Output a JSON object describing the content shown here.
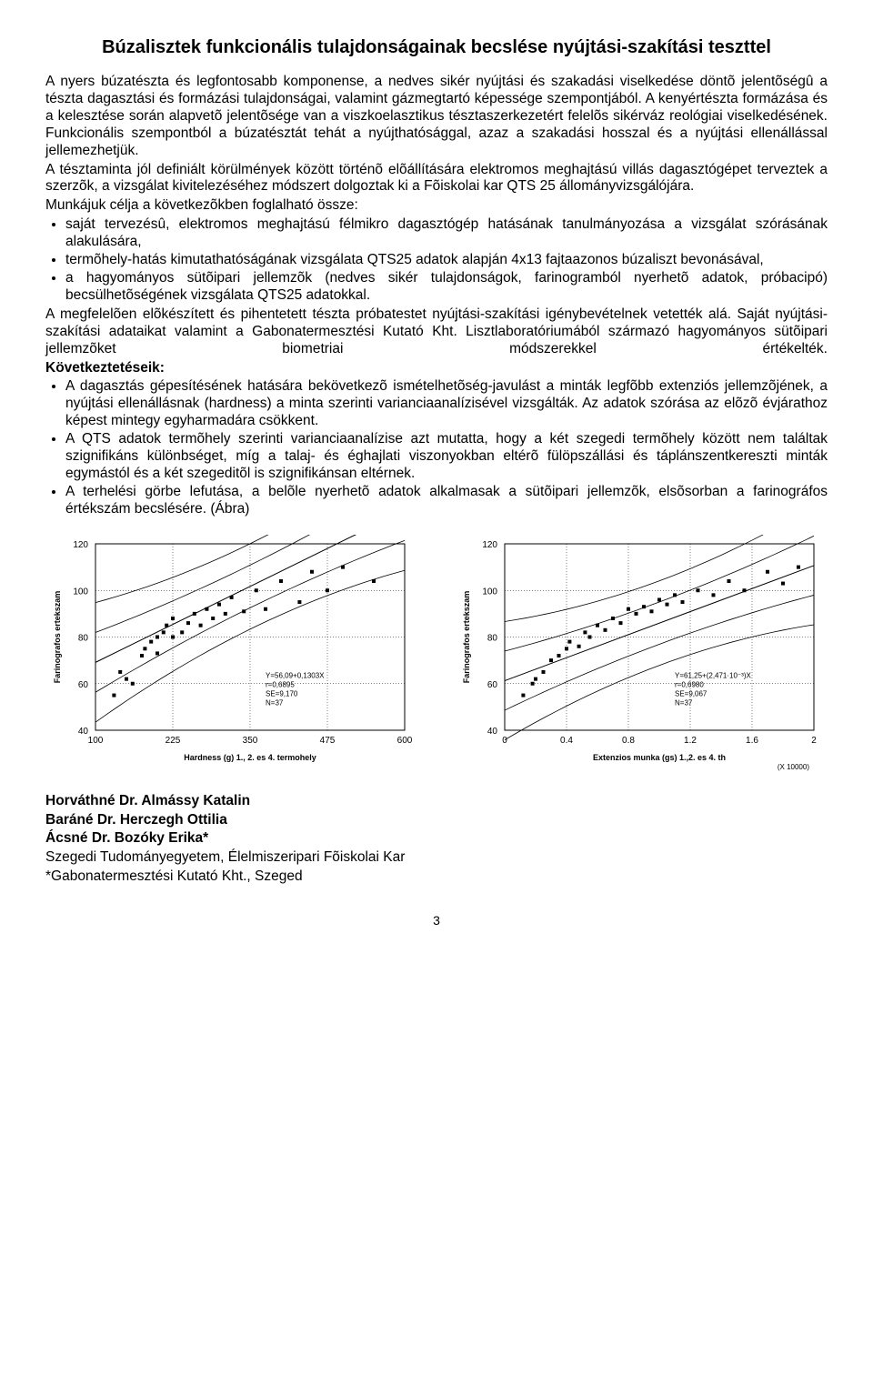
{
  "title": "Búzalisztek funkcionális tulajdonságainak becslése nyújtási-szakítási teszttel",
  "para1": "A nyers búzatészta és legfontosabb komponense, a nedves sikér nyújtási és szakadási viselkedése döntõ jelentõségû a tészta dagasztási és formázási tulajdonságai, valamint gázmegtartó képessége szempontjából. A kenyértészta formázása és a kelesztése során alapvetõ jelentõsége van a viszkoelasztikus tésztaszerkezetért felelõs sikérváz reológiai viselkedésének. Funkcionális szempontból a búzatésztát tehát a nyújthatósággal, azaz a szakadási hosszal és a nyújtási ellenállással jellemezhetjük.",
  "para2": "A tésztaminta jól definiált körülmények között történõ elõállítására elektromos meghajtású villás dagasztógépet terveztek a szerzõk, a vizsgálat kivitelezéséhez módszert dolgoztak ki a Fõiskolai kar QTS 25 állományvizsgálójára.",
  "para3": "Munkájuk célja a következõkben foglalható össze:",
  "bullets1": [
    "saját tervezésû, elektromos meghajtású félmikro dagasztógép hatásának tanulmányozása a vizsgálat szórásának alakulására,",
    "termõhely-hatás kimutathatóságának vizsgálata QTS25 adatok alapján 4x13 fajtaazonos búzaliszt bevonásával,",
    "a hagyományos sütõipari jellemzõk (nedves sikér tulajdonságok, farinogramból nyerhetõ adatok, próbacipó) becsülhetõségének vizsgálata QTS25 adatokkal."
  ],
  "para4": "A megfelelõen elõkészített és pihentetett tészta próbatestet nyújtási-szakítási igénybevételnek vetették alá. Saját nyújtási-szakítási adataikat valamint a Gabonatermesztési Kutató Kht. Lisztlaboratóriumából származó hagyományos sütõipari jellemzõket biometriai módszerekkel értékelték.",
  "conclusions_label": "Következtetéseik:",
  "bullets2": [
    "A dagasztás gépesítésének hatására bekövetkezõ ismételhetõség-javulást a minták legfõbb extenziós jellemzõjének, a nyújtási ellenállásnak (hardness) a minta szerinti varianciaanalízisével vizsgálták. Az adatok szórása az elõzõ évjárathoz képest mintegy egyharmadára csökkent.",
    "A QTS adatok termõhely szerinti varianciaanalízise azt mutatta, hogy a két szegedi termõhely között nem találtak szignifikáns különbséget, míg a talaj- és éghajlati viszonyokban eltérõ fülöpszállási és táplánszentkereszti minták egymástól és a két szegeditõl is szignifikánsan eltérnek.",
    "A terhelési görbe lefutása, a belõle nyerhetõ adatok alkalmasak a sütõipari jellemzõk, elsõsorban a farinográfos értékszám becslésére. (Ábra)"
  ],
  "chart_left": {
    "type": "scatter",
    "ylabel": "Farinografos ertekszam",
    "xlabel": "Hardness (g) 1., 2. es 4. termohely",
    "xlim": [
      100,
      600
    ],
    "ylim": [
      40,
      120
    ],
    "xticks": [
      100,
      225,
      350,
      475,
      600
    ],
    "yticks": [
      40,
      60,
      80,
      100,
      120
    ],
    "grid_color": "#000000",
    "grid_dash": "1,2",
    "marker_color": "#000000",
    "marker_size": 4,
    "line_color": "#000000",
    "points": [
      [
        130,
        55
      ],
      [
        140,
        65
      ],
      [
        150,
        62
      ],
      [
        160,
        60
      ],
      [
        175,
        72
      ],
      [
        180,
        75
      ],
      [
        190,
        78
      ],
      [
        200,
        73
      ],
      [
        200,
        80
      ],
      [
        210,
        82
      ],
      [
        215,
        85
      ],
      [
        225,
        80
      ],
      [
        225,
        88
      ],
      [
        240,
        82
      ],
      [
        250,
        86
      ],
      [
        260,
        90
      ],
      [
        270,
        85
      ],
      [
        280,
        92
      ],
      [
        290,
        88
      ],
      [
        300,
        94
      ],
      [
        310,
        90
      ],
      [
        320,
        97
      ],
      [
        340,
        91
      ],
      [
        360,
        100
      ],
      [
        375,
        92
      ],
      [
        400,
        104
      ],
      [
        430,
        95
      ],
      [
        450,
        108
      ],
      [
        475,
        100
      ],
      [
        500,
        110
      ],
      [
        550,
        104
      ]
    ],
    "center_line": {
      "slope": 0.1303,
      "intercept": 56.09
    },
    "band_offset": 9.17,
    "annot": [
      "Y=56,09+0,1303X",
      "r=0,6895",
      "SE=9,170",
      "N=37"
    ],
    "annot_fontsize": 8
  },
  "chart_right": {
    "type": "scatter",
    "ylabel": "Farinografos ertekszam",
    "xlabel": "Extenzios munka (gs) 1.,2. es 4. th",
    "xunit": "(X 10000)",
    "xlim": [
      0,
      2
    ],
    "ylim": [
      40,
      120
    ],
    "xticks": [
      0,
      0.4,
      0.8,
      1.2,
      1.6,
      2
    ],
    "yticks": [
      40,
      60,
      80,
      100,
      120
    ],
    "grid_color": "#000000",
    "grid_dash": "1,2",
    "marker_color": "#000000",
    "marker_size": 4,
    "line_color": "#000000",
    "points": [
      [
        0.12,
        55
      ],
      [
        0.18,
        60
      ],
      [
        0.2,
        62
      ],
      [
        0.25,
        65
      ],
      [
        0.3,
        70
      ],
      [
        0.35,
        72
      ],
      [
        0.4,
        75
      ],
      [
        0.42,
        78
      ],
      [
        0.48,
        76
      ],
      [
        0.52,
        82
      ],
      [
        0.55,
        80
      ],
      [
        0.6,
        85
      ],
      [
        0.65,
        83
      ],
      [
        0.7,
        88
      ],
      [
        0.75,
        86
      ],
      [
        0.8,
        92
      ],
      [
        0.85,
        90
      ],
      [
        0.9,
        93
      ],
      [
        0.95,
        91
      ],
      [
        1.0,
        96
      ],
      [
        1.05,
        94
      ],
      [
        1.1,
        98
      ],
      [
        1.15,
        95
      ],
      [
        1.25,
        100
      ],
      [
        1.35,
        98
      ],
      [
        1.45,
        104
      ],
      [
        1.55,
        100
      ],
      [
        1.7,
        108
      ],
      [
        1.8,
        103
      ],
      [
        1.9,
        110
      ]
    ],
    "center_line": {
      "slope": 24.71,
      "intercept": 61.25
    },
    "band_offset": 9.067,
    "annot": [
      "Y=61,25+(2,471·10⁻³)X",
      "r=0,6980",
      "SE=9,067",
      "N=37"
    ],
    "annot_fontsize": 8
  },
  "authors": [
    "Horváthné Dr. Almássy Katalin",
    "Baráné Dr. Herczegh Ottilia",
    "Ácsné Dr. Bozóky Erika*"
  ],
  "affil1": "Szegedi Tudományegyetem, Élelmiszeripari Fõiskolai Kar",
  "affil2": "*Gabonatermesztési Kutató Kht., Szeged",
  "page_number": "3"
}
